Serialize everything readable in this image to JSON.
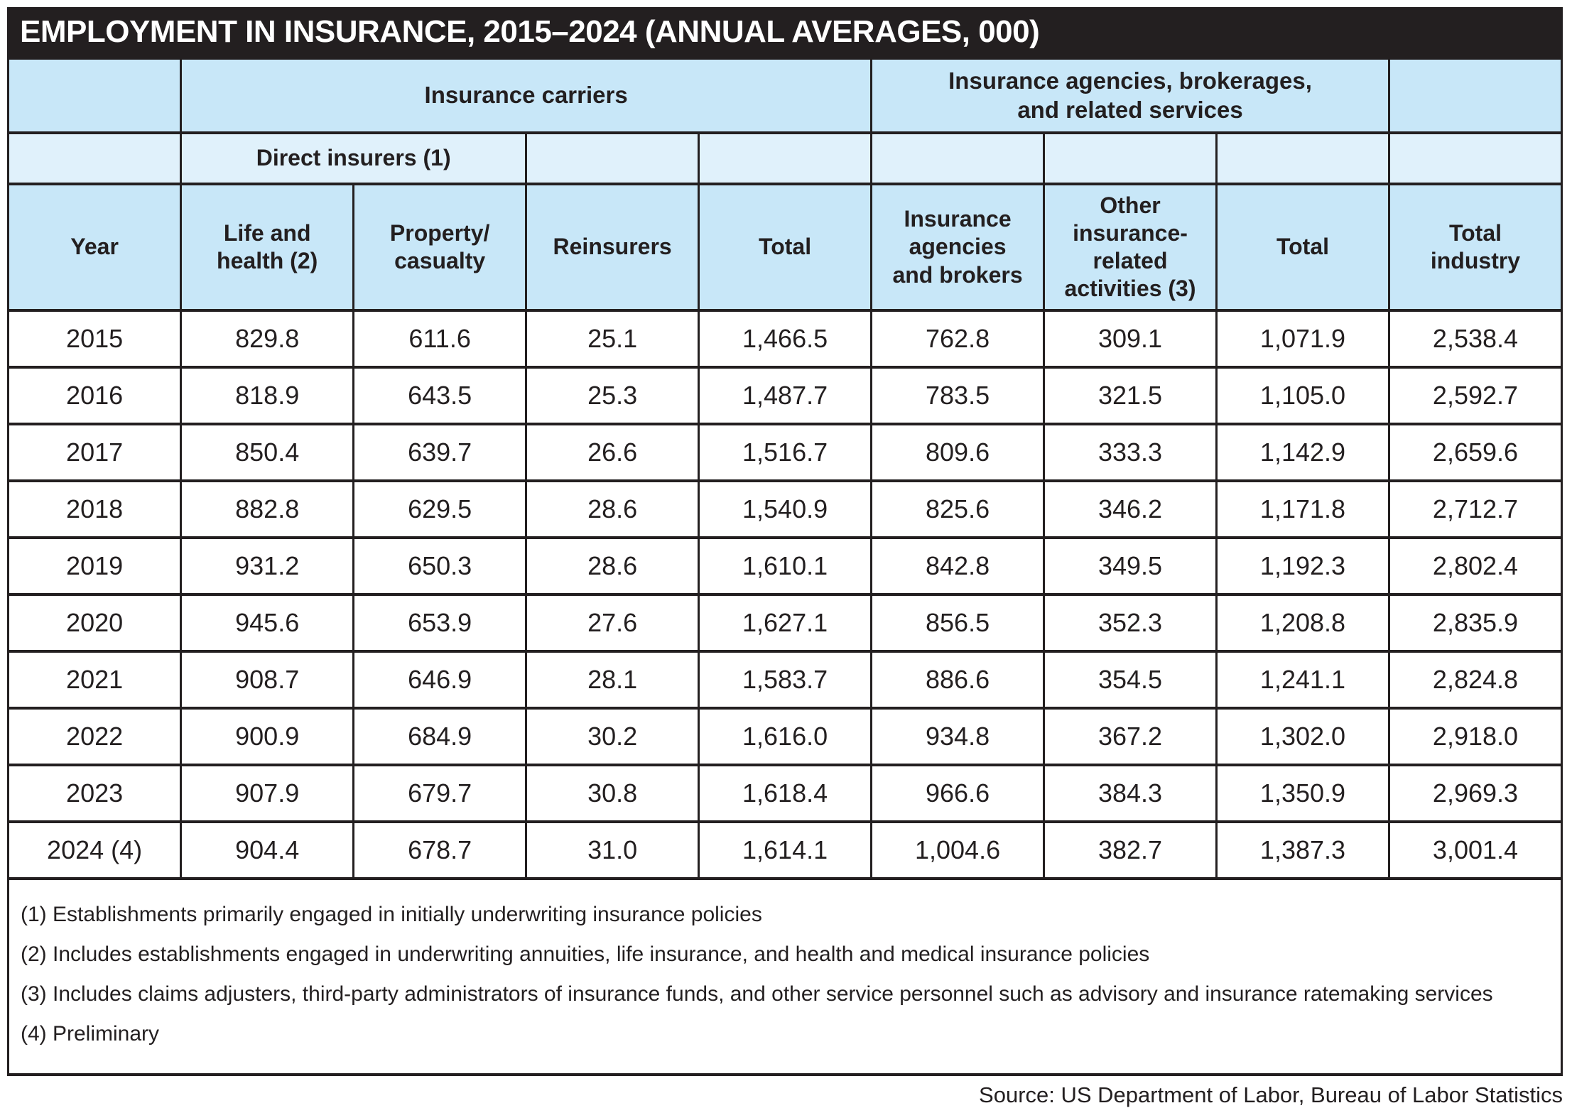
{
  "title": "EMPLOYMENT IN INSURANCE, 2015–2024 (ANNUAL AVERAGES, 000)",
  "colors": {
    "title_bar_bg": "#231f20",
    "title_text": "#ffffff",
    "header_blue": "#c8e7f8",
    "subheader_blue": "#e0f1fb",
    "border": "#231f20",
    "body_text": "#231f20"
  },
  "table": {
    "group_headers": {
      "carriers": "Insurance carriers",
      "agencies": "Insurance agencies, brokerages,\nand related services"
    },
    "sub_group_header": "Direct insurers (1)",
    "columns": [
      "Year",
      "Life and\nhealth (2)",
      "Property/\ncasualty",
      "Reinsurers",
      "Total",
      "Insurance\nagencies\nand brokers",
      "Other\ninsurance-\nrelated\nactivities (3)",
      "Total",
      "Total\nindustry"
    ],
    "rows": [
      [
        "2015",
        "829.8",
        "611.6",
        "25.1",
        "1,466.5",
        "762.8",
        "309.1",
        "1,071.9",
        "2,538.4"
      ],
      [
        "2016",
        "818.9",
        "643.5",
        "25.3",
        "1,487.7",
        "783.5",
        "321.5",
        "1,105.0",
        "2,592.7"
      ],
      [
        "2017",
        "850.4",
        "639.7",
        "26.6",
        "1,516.7",
        "809.6",
        "333.3",
        "1,142.9",
        "2,659.6"
      ],
      [
        "2018",
        "882.8",
        "629.5",
        "28.6",
        "1,540.9",
        "825.6",
        "346.2",
        "1,171.8",
        "2,712.7"
      ],
      [
        "2019",
        "931.2",
        "650.3",
        "28.6",
        "1,610.1",
        "842.8",
        "349.5",
        "1,192.3",
        "2,802.4"
      ],
      [
        "2020",
        "945.6",
        "653.9",
        "27.6",
        "1,627.1",
        "856.5",
        "352.3",
        "1,208.8",
        "2,835.9"
      ],
      [
        "2021",
        "908.7",
        "646.9",
        "28.1",
        "1,583.7",
        "886.6",
        "354.5",
        "1,241.1",
        "2,824.8"
      ],
      [
        "2022",
        "900.9",
        "684.9",
        "30.2",
        "1,616.0",
        "934.8",
        "367.2",
        "1,302.0",
        "2,918.0"
      ],
      [
        "2023",
        "907.9",
        "679.7",
        "30.8",
        "1,618.4",
        "966.6",
        "384.3",
        "1,350.9",
        "2,969.3"
      ],
      [
        "2024 (4)",
        "904.4",
        "678.7",
        "31.0",
        "1,614.1",
        "1,004.6",
        "382.7",
        "1,387.3",
        "3,001.4"
      ]
    ]
  },
  "footnotes": [
    "(1) Establishments primarily engaged in initially underwriting insurance policies",
    "(2) Includes establishments engaged in underwriting annuities, life insurance, and health and medical insurance policies",
    "(3) Includes claims adjusters, third-party administrators of insurance funds, and other service personnel such as advisory and insurance ratemaking services",
    "(4) Preliminary"
  ],
  "source": "Source: US Department of Labor, Bureau of Labor Statistics",
  "chart_data": {
    "type": "table",
    "title": "Employment in Insurance, 2015–2024 (Annual Averages, 000)",
    "column_groups": [
      {
        "label": "Insurance carriers",
        "columns": [
          "Life and health (2)",
          "Property/casualty",
          "Reinsurers",
          "Total"
        ],
        "sub_group": {
          "label": "Direct insurers (1)",
          "columns": [
            "Life and health (2)",
            "Property/casualty"
          ]
        }
      },
      {
        "label": "Insurance agencies, brokerages, and related services",
        "columns": [
          "Insurance agencies and brokers",
          "Other insurance-related activities (3)",
          "Total"
        ]
      }
    ],
    "categories": [
      "2015",
      "2016",
      "2017",
      "2018",
      "2019",
      "2020",
      "2021",
      "2022",
      "2023",
      "2024 (4)"
    ],
    "series": [
      {
        "name": "Life and health (2)",
        "values": [
          829.8,
          818.9,
          850.4,
          882.8,
          931.2,
          945.6,
          908.7,
          900.9,
          907.9,
          904.4
        ]
      },
      {
        "name": "Property/casualty",
        "values": [
          611.6,
          643.5,
          639.7,
          629.5,
          650.3,
          653.9,
          646.9,
          684.9,
          679.7,
          678.7
        ]
      },
      {
        "name": "Reinsurers",
        "values": [
          25.1,
          25.3,
          26.6,
          28.6,
          28.6,
          27.6,
          28.1,
          30.2,
          30.8,
          31.0
        ]
      },
      {
        "name": "Insurance carriers total",
        "values": [
          1466.5,
          1487.7,
          1516.7,
          1540.9,
          1610.1,
          1627.1,
          1583.7,
          1616.0,
          1618.4,
          1614.1
        ]
      },
      {
        "name": "Insurance agencies and brokers",
        "values": [
          762.8,
          783.5,
          809.6,
          825.6,
          842.8,
          856.5,
          886.6,
          934.8,
          966.6,
          1004.6
        ]
      },
      {
        "name": "Other insurance-related activities (3)",
        "values": [
          309.1,
          321.5,
          333.3,
          346.2,
          349.5,
          352.3,
          354.5,
          367.2,
          384.3,
          382.7
        ]
      },
      {
        "name": "Agencies, brokerages and related services total",
        "values": [
          1071.9,
          1105.0,
          1142.9,
          1171.8,
          1192.3,
          1208.8,
          1241.1,
          1302.0,
          1350.9,
          1387.3
        ]
      },
      {
        "name": "Total industry",
        "values": [
          2538.4,
          2592.7,
          2659.6,
          2712.7,
          2802.4,
          2835.9,
          2824.8,
          2918.0,
          2969.3,
          3001.4
        ]
      }
    ],
    "footnotes": [
      "(1) Establishments primarily engaged in initially underwriting insurance policies",
      "(2) Includes establishments engaged in underwriting annuities, life insurance, and health and medical insurance policies",
      "(3) Includes claims adjusters, third-party administrators of insurance funds, and other service personnel such as advisory and insurance ratemaking services",
      "(4) Preliminary"
    ],
    "source": "Source: US Department of Labor, Bureau of Labor Statistics"
  }
}
